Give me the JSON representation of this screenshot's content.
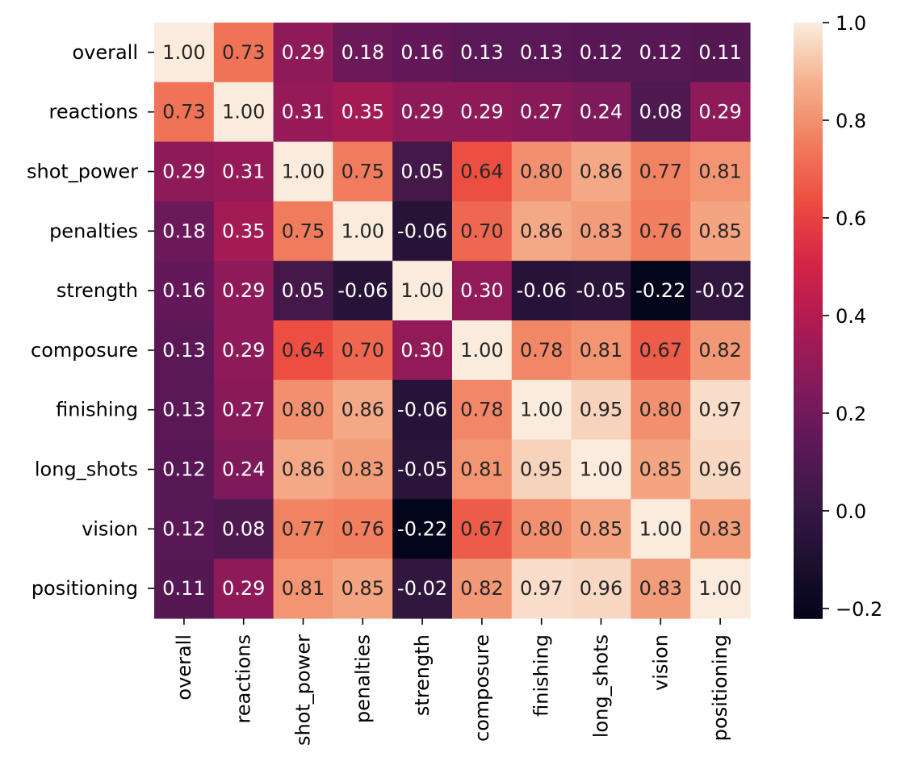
{
  "chart_data": {
    "type": "heatmap",
    "title": "",
    "xlabel": "",
    "ylabel": "",
    "row_labels": [
      "overall",
      "reactions",
      "shot_power",
      "penalties",
      "strength",
      "composure",
      "finishing",
      "long_shots",
      "vision",
      "positioning"
    ],
    "col_labels": [
      "overall",
      "reactions",
      "shot_power",
      "penalties",
      "strength",
      "composure",
      "finishing",
      "long_shots",
      "vision",
      "positioning"
    ],
    "values": [
      [
        1.0,
        0.73,
        0.29,
        0.18,
        0.16,
        0.13,
        0.13,
        0.12,
        0.12,
        0.11
      ],
      [
        0.73,
        1.0,
        0.31,
        0.35,
        0.29,
        0.29,
        0.27,
        0.24,
        0.08,
        0.29
      ],
      [
        0.29,
        0.31,
        1.0,
        0.75,
        0.05,
        0.64,
        0.8,
        0.86,
        0.77,
        0.81
      ],
      [
        0.18,
        0.35,
        0.75,
        1.0,
        -0.06,
        0.7,
        0.86,
        0.83,
        0.76,
        0.85
      ],
      [
        0.16,
        0.29,
        0.05,
        -0.06,
        1.0,
        0.3,
        -0.06,
        -0.05,
        -0.22,
        -0.02
      ],
      [
        0.13,
        0.29,
        0.64,
        0.7,
        0.3,
        1.0,
        0.78,
        0.81,
        0.67,
        0.82
      ],
      [
        0.13,
        0.27,
        0.8,
        0.86,
        -0.06,
        0.78,
        1.0,
        0.95,
        0.8,
        0.97
      ],
      [
        0.12,
        0.24,
        0.86,
        0.83,
        -0.05,
        0.81,
        0.95,
        1.0,
        0.85,
        0.96
      ],
      [
        0.12,
        0.08,
        0.77,
        0.76,
        -0.22,
        0.67,
        0.8,
        0.85,
        1.0,
        0.83
      ],
      [
        0.11,
        0.29,
        0.81,
        0.85,
        -0.02,
        0.82,
        0.97,
        0.96,
        0.83,
        1.0
      ]
    ],
    "annotation_format": "0.00",
    "colormap": "rocket",
    "colorbar": {
      "range": [
        -0.22,
        1.0
      ],
      "ticks": [
        1.0,
        0.8,
        0.6,
        0.4,
        0.2,
        0.0,
        -0.2
      ],
      "tick_labels": [
        "1.0",
        "0.8",
        "0.6",
        "0.4",
        "0.2",
        "0.0",
        "−0.2"
      ],
      "placement": "right"
    },
    "grid": false,
    "legend": "none"
  }
}
